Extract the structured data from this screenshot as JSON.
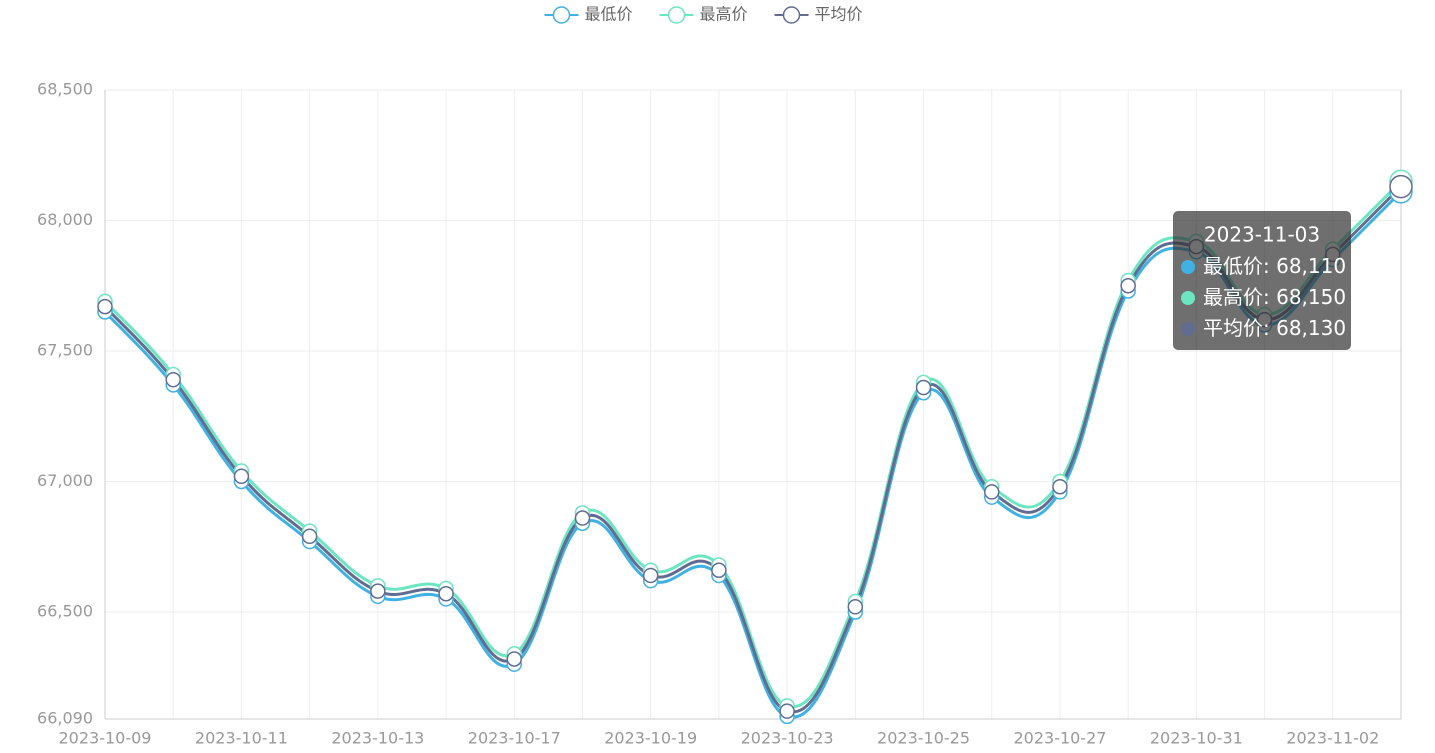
{
  "chart_data": {
    "type": "line",
    "categories": [
      "2023-10-09",
      null,
      "2023-10-11",
      null,
      "2023-10-13",
      null,
      "2023-10-17",
      null,
      "2023-10-19",
      null,
      "2023-10-23",
      null,
      "2023-10-25",
      null,
      "2023-10-27",
      null,
      "2023-10-31",
      null,
      "2023-11-02",
      "2023-11-03"
    ],
    "series": [
      {
        "name": "最低价",
        "color": "#3fb1e3",
        "values": [
          67650,
          67370,
          67000,
          66770,
          66560,
          66550,
          66300,
          66840,
          66620,
          66640,
          66100,
          66500,
          67340,
          66940,
          66960,
          67730,
          67880,
          67600,
          67850,
          68110
        ],
        "value_labels": [
          null,
          null,
          null,
          null,
          null,
          null,
          null,
          null,
          null,
          null,
          null,
          null,
          null,
          null,
          null,
          null,
          null,
          null,
          null,
          "68,110"
        ]
      },
      {
        "name": "最高价",
        "color": "#6be6c1",
        "values": [
          67690,
          67410,
          67040,
          66810,
          66600,
          66590,
          66340,
          66880,
          66660,
          66680,
          66140,
          66540,
          67380,
          66980,
          67000,
          67770,
          67920,
          67640,
          67890,
          68150
        ],
        "value_labels": [
          null,
          null,
          null,
          null,
          null,
          null,
          null,
          null,
          null,
          null,
          null,
          null,
          null,
          null,
          null,
          null,
          null,
          null,
          null,
          "68,150"
        ]
      },
      {
        "name": "平均价",
        "color": "#626c91",
        "values": [
          67670,
          67390,
          67020,
          66790,
          66580,
          66570,
          66320,
          66860,
          66640,
          66660,
          66120,
          66520,
          67360,
          66960,
          66980,
          67750,
          67900,
          67620,
          67870,
          68130
        ],
        "value_labels": [
          null,
          null,
          null,
          null,
          null,
          null,
          null,
          null,
          null,
          null,
          null,
          null,
          null,
          null,
          null,
          null,
          null,
          null,
          null,
          "68,130"
        ]
      }
    ],
    "ylim": [
      66090,
      68500
    ],
    "yticks": [
      {
        "value": 66090,
        "label": "66,090"
      },
      {
        "value": 66500,
        "label": "66,500"
      },
      {
        "value": 67000,
        "label": "67,000"
      },
      {
        "value": 67500,
        "label": "67,500"
      },
      {
        "value": 68000,
        "label": "68,000"
      },
      {
        "value": 68500,
        "label": "68,500"
      }
    ],
    "grid": true,
    "smooth": true,
    "legend": "top"
  }
}
